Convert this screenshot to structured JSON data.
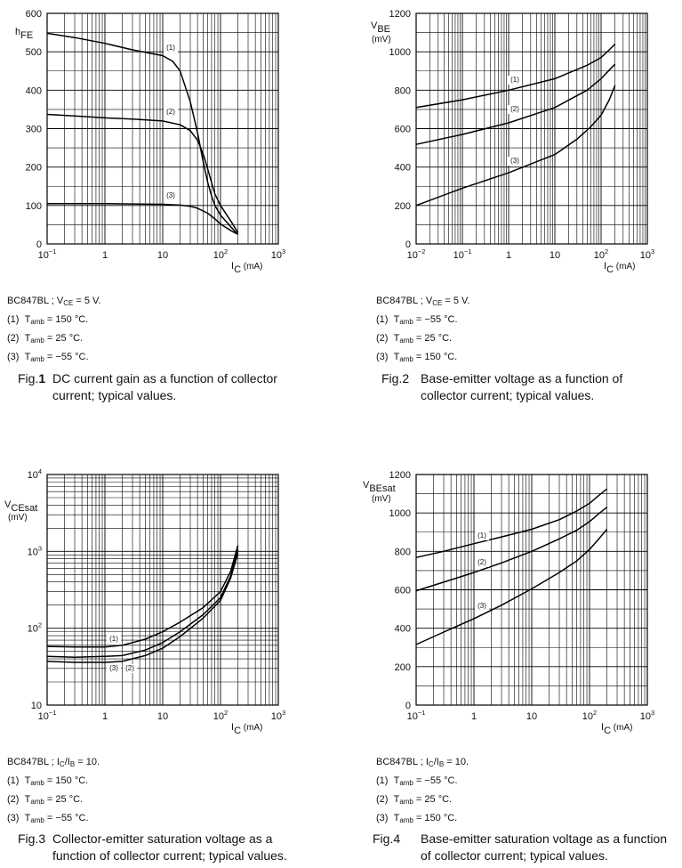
{
  "chart_data": [
    {
      "type": "line",
      "title": "DC current gain as a function of collector current; typical values.",
      "figure": "Fig.1",
      "figure_num": "1",
      "xscale": "log",
      "yscale": "linear",
      "xlim_exp": [
        -1,
        3
      ],
      "ylim": [
        0,
        600
      ],
      "ylabel": "hFE",
      "ylabel_main": "h",
      "ylabel_sub": "FE",
      "ylabel_unit": "",
      "xlabel_main": "I",
      "xlabel_sub": "C",
      "xlabel_unit": "(mA)",
      "y_ticks": [
        "0",
        "100",
        "200",
        "300",
        "400",
        "500",
        "600"
      ],
      "x_ticks": [
        {
          "base": "10",
          "sup": "−1"
        },
        {
          "base": "1",
          "sup": ""
        },
        {
          "base": "10",
          "sup": ""
        },
        {
          "base": "10",
          "sup": "2"
        },
        {
          "base": "10",
          "sup": "3"
        }
      ],
      "series": [
        {
          "name": "(1)",
          "x": [
            0.1,
            0.3,
            1,
            3,
            10,
            15,
            20,
            30,
            40,
            50,
            60,
            70,
            80,
            100,
            150,
            200
          ],
          "y": [
            548,
            537,
            522,
            505,
            490,
            475,
            450,
            370,
            290,
            215,
            160,
            125,
            100,
            75,
            45,
            25
          ]
        },
        {
          "name": "(2)",
          "x": [
            0.1,
            0.3,
            1,
            3,
            10,
            20,
            30,
            40,
            50,
            60,
            70,
            80,
            100,
            150,
            200
          ],
          "y": [
            337,
            333,
            328,
            325,
            320,
            310,
            295,
            270,
            235,
            195,
            160,
            130,
            100,
            60,
            30
          ]
        },
        {
          "name": "(3)",
          "x": [
            0.1,
            0.3,
            1,
            3,
            10,
            20,
            30,
            40,
            60,
            80,
            100,
            150,
            200
          ],
          "y": [
            105,
            105,
            105,
            104,
            103,
            101,
            98,
            93,
            80,
            65,
            52,
            35,
            25
          ]
        }
      ],
      "annotations": [
        "(1)",
        "(2)",
        "(3)"
      ],
      "conditions": {
        "device": "BC847BL",
        "cond_main": "V",
        "cond_sub": "CE",
        "cond_rest": " = 5 V.",
        "lines": [
          {
            "num": "(1)",
            "t": "T",
            "tsub": "amb",
            "val": " = 150 °C."
          },
          {
            "num": "(2)",
            "t": "T",
            "tsub": "amb",
            "val": " = 25 °C."
          },
          {
            "num": "(3)",
            "t": "T",
            "tsub": "amb",
            "val": " = −55 °C."
          }
        ]
      },
      "caption": "DC current gain as a function of collector current; typical values."
    },
    {
      "type": "line",
      "title": "Base-emitter voltage as a function of collector current; typical values.",
      "figure": "Fig.2",
      "figure_num": "2",
      "xscale": "log",
      "yscale": "linear",
      "xlim_exp": [
        -2,
        3
      ],
      "ylim": [
        0,
        1200
      ],
      "ylabel": "VBE (mV)",
      "ylabel_main": "V",
      "ylabel_sub": "BE",
      "ylabel_unit": "(mV)",
      "xlabel_main": "I",
      "xlabel_sub": "C",
      "xlabel_unit": "(mA)",
      "y_ticks": [
        "0",
        "200",
        "400",
        "600",
        "800",
        "1000",
        "1200"
      ],
      "x_ticks": [
        {
          "base": "10",
          "sup": "−2"
        },
        {
          "base": "10",
          "sup": "−1"
        },
        {
          "base": "1",
          "sup": ""
        },
        {
          "base": "10",
          "sup": ""
        },
        {
          "base": "10",
          "sup": "2"
        },
        {
          "base": "10",
          "sup": "3"
        }
      ],
      "series": [
        {
          "name": "(1)",
          "x": [
            0.01,
            0.1,
            1,
            10,
            50,
            100,
            150,
            200
          ],
          "y": [
            710,
            750,
            800,
            860,
            930,
            970,
            1010,
            1040
          ]
        },
        {
          "name": "(2)",
          "x": [
            0.01,
            0.1,
            1,
            10,
            50,
            100,
            150,
            200
          ],
          "y": [
            518,
            570,
            630,
            710,
            800,
            860,
            905,
            935
          ]
        },
        {
          "name": "(3)",
          "x": [
            0.01,
            0.1,
            1,
            10,
            30,
            60,
            100,
            150,
            200
          ],
          "y": [
            200,
            290,
            370,
            465,
            545,
            610,
            670,
            750,
            825
          ]
        }
      ],
      "annotations": [
        "(1)",
        "(2)",
        "(3)"
      ],
      "conditions": {
        "device": "BC847BL",
        "cond_main": "V",
        "cond_sub": "CE",
        "cond_rest": " = 5 V.",
        "lines": [
          {
            "num": "(1)",
            "t": "T",
            "tsub": "amb",
            "val": " = −55 °C."
          },
          {
            "num": "(2)",
            "t": "T",
            "tsub": "amb",
            "val": " = 25 °C."
          },
          {
            "num": "(3)",
            "t": "T",
            "tsub": "amb",
            "val": " = 150 °C."
          }
        ]
      },
      "caption": "Base-emitter voltage as a function of collector current; typical values."
    },
    {
      "type": "line",
      "title": "Collector-emitter saturation voltage as a function of collector current; typical values.",
      "figure": "Fig.3",
      "figure_num": "3",
      "xscale": "log",
      "yscale": "log",
      "xlim_exp": [
        -1,
        3
      ],
      "ylim_exp": [
        1,
        4
      ],
      "ylabel": "VCEsat (mV)",
      "ylabel_main": "V",
      "ylabel_sub": "CEsat",
      "ylabel_unit": "(mV)",
      "xlabel_main": "I",
      "xlabel_sub": "C",
      "xlabel_unit": "(mA)",
      "y_ticks": [
        {
          "base": "10",
          "sup": ""
        },
        {
          "base": "10",
          "sup": "2"
        },
        {
          "base": "10",
          "sup": "3"
        },
        {
          "base": "10",
          "sup": "4"
        }
      ],
      "x_ticks": [
        {
          "base": "10",
          "sup": "−1"
        },
        {
          "base": "1",
          "sup": ""
        },
        {
          "base": "10",
          "sup": ""
        },
        {
          "base": "10",
          "sup": "2"
        },
        {
          "base": "10",
          "sup": "3"
        }
      ],
      "series": [
        {
          "name": "(1)",
          "x": [
            0.1,
            0.3,
            1,
            2,
            5,
            10,
            20,
            50,
            100,
            150,
            200
          ],
          "y": [
            58,
            57,
            57,
            60,
            72,
            90,
            120,
            185,
            300,
            550,
            1200
          ]
        },
        {
          "name": "(2)",
          "x": [
            0.1,
            0.3,
            1,
            2,
            5,
            10,
            20,
            50,
            100,
            150,
            200
          ],
          "y": [
            43,
            42,
            43,
            44,
            52,
            65,
            90,
            150,
            250,
            480,
            1050
          ]
        },
        {
          "name": "(3)",
          "x": [
            0.1,
            0.3,
            1,
            2,
            5,
            10,
            20,
            50,
            100,
            150,
            200
          ],
          "y": [
            37,
            36,
            36,
            37,
            44,
            55,
            78,
            135,
            230,
            450,
            950
          ]
        }
      ],
      "annotations": [
        "(1)",
        "(2)",
        "(3)"
      ],
      "conditions": {
        "device": "BC847BL",
        "cond_main": "I",
        "cond_sub": "C",
        "cond_mid": "/I",
        "cond_sub2": "B",
        "cond_rest": " = 10.",
        "lines": [
          {
            "num": "(1)",
            "t": "T",
            "tsub": "amb",
            "val": " = 150 °C."
          },
          {
            "num": "(2)",
            "t": "T",
            "tsub": "amb",
            "val": " = 25 °C."
          },
          {
            "num": "(3)",
            "t": "T",
            "tsub": "amb",
            "val": " = −55 °C."
          }
        ]
      },
      "caption": "Collector-emitter saturation voltage as a function of collector current; typical values."
    },
    {
      "type": "line",
      "title": "Base-emitter saturation voltage as a function of collector current; typical values.",
      "figure": "Fig.4",
      "figure_num": "4",
      "xscale": "log",
      "yscale": "linear",
      "xlim_exp": [
        -1,
        3
      ],
      "ylim": [
        0,
        1200
      ],
      "ylabel": "VBEsat (mV)",
      "ylabel_main": "V",
      "ylabel_sub": "BEsat",
      "ylabel_unit": "(mV)",
      "xlabel_main": "I",
      "xlabel_sub": "C",
      "xlabel_unit": "(mA)",
      "y_ticks": [
        "0",
        "200",
        "400",
        "600",
        "800",
        "1000",
        "1200"
      ],
      "x_ticks": [
        {
          "base": "10",
          "sup": "−1"
        },
        {
          "base": "1",
          "sup": ""
        },
        {
          "base": "10",
          "sup": ""
        },
        {
          "base": "10",
          "sup": "2"
        },
        {
          "base": "10",
          "sup": "3"
        }
      ],
      "series": [
        {
          "name": "(1)",
          "x": [
            0.1,
            0.3,
            1,
            3,
            10,
            30,
            60,
            100,
            150,
            200
          ],
          "y": [
            768,
            800,
            840,
            875,
            915,
            965,
            1010,
            1050,
            1095,
            1125
          ]
        },
        {
          "name": "(2)",
          "x": [
            0.1,
            0.3,
            1,
            3,
            10,
            30,
            60,
            100,
            150,
            200
          ],
          "y": [
            595,
            640,
            690,
            740,
            800,
            865,
            910,
            955,
            1000,
            1030
          ]
        },
        {
          "name": "(3)",
          "x": [
            0.1,
            0.3,
            1,
            3,
            10,
            30,
            60,
            100,
            150,
            200
          ],
          "y": [
            315,
            380,
            450,
            520,
            605,
            690,
            750,
            810,
            870,
            915
          ]
        }
      ],
      "annotations": [
        "(1)",
        "(2)",
        "(3)"
      ],
      "conditions": {
        "device": "BC847BL",
        "cond_main": "I",
        "cond_sub": "C",
        "cond_mid": "/I",
        "cond_sub2": "B",
        "cond_rest": " = 10.",
        "lines": [
          {
            "num": "(1)",
            "t": "T",
            "tsub": "amb",
            "val": " = −55 °C."
          },
          {
            "num": "(2)",
            "t": "T",
            "tsub": "amb",
            "val": " = 25 °C."
          },
          {
            "num": "(3)",
            "t": "T",
            "tsub": "amb",
            "val": " = 150 °C."
          }
        ]
      },
      "caption": "Base-emitter saturation voltage as a function of collector current; typical values."
    }
  ]
}
